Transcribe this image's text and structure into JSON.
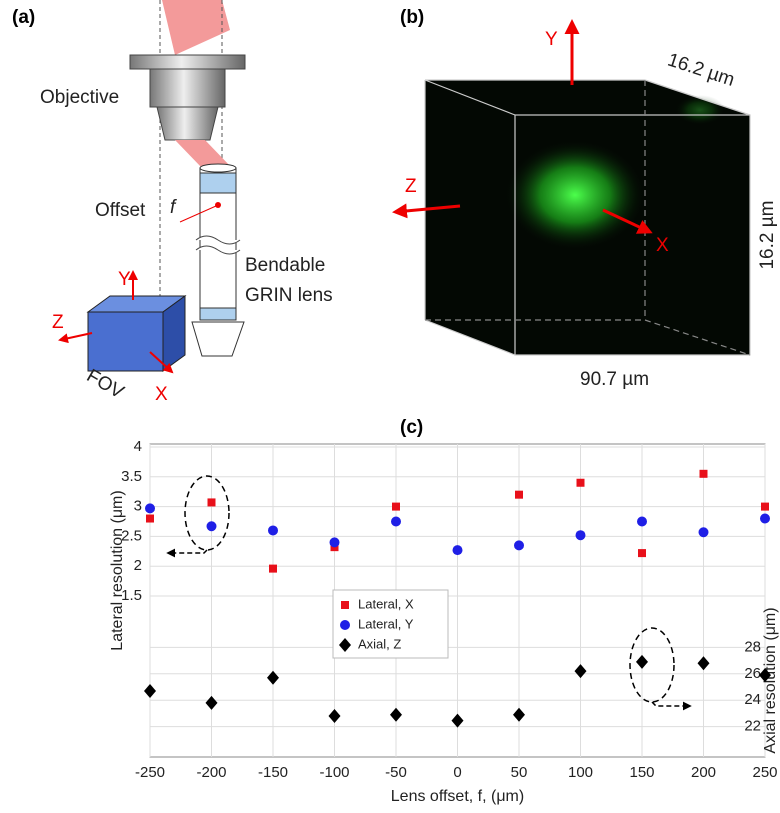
{
  "panels": {
    "a": {
      "label": "(a)",
      "objective": "Objective",
      "offset": "Offset",
      "offset_symbol": "f",
      "bendable": "Bendable",
      "grin": "GRIN lens",
      "y": "Y",
      "z": "Z",
      "x": "X",
      "fov": "FOV"
    },
    "b": {
      "label": "(b)",
      "y": "Y",
      "z": "Z",
      "x": "X",
      "depth": "16.2 µm",
      "height": "16.2 µm",
      "width": "90.7 µm"
    },
    "c": {
      "label": "(c)"
    }
  },
  "chart_data": {
    "type": "scatter",
    "xlabel": "Lens offset, f, (μm)",
    "ylabel": "Lateral resolution (μm)",
    "y2label": "Axial resolution (μm)",
    "xlim": [
      -250,
      250
    ],
    "xticks": [
      -250,
      -200,
      -150,
      -100,
      -50,
      0,
      50,
      100,
      150,
      200,
      250
    ],
    "ylim": [
      -1.2,
      4.05
    ],
    "yticks": [
      1.5,
      2,
      2.5,
      3,
      3.5,
      4
    ],
    "y2lim": [
      19.7,
      43.4
    ],
    "y2ticks": [
      22,
      24,
      26,
      28
    ],
    "grid": true,
    "series": [
      {
        "name": "Lateral, X",
        "color": "#e8101a",
        "marker": "square",
        "x": [
          -250,
          -200,
          -150,
          -100,
          -50,
          50,
          100,
          150,
          200,
          250
        ],
        "values": [
          2.8,
          3.07,
          1.96,
          2.32,
          3.0,
          3.2,
          3.4,
          2.22,
          3.55,
          3.0
        ]
      },
      {
        "name": "Lateral, Y",
        "color": "#1f1fe6",
        "marker": "circle",
        "x": [
          -250,
          -200,
          -150,
          -100,
          -50,
          0,
          50,
          100,
          150,
          200,
          250
        ],
        "values": [
          2.97,
          2.67,
          2.6,
          2.4,
          2.75,
          2.27,
          2.35,
          2.52,
          2.75,
          2.57,
          2.8
        ]
      },
      {
        "name": "Axial, Z",
        "color": "#000000",
        "marker": "diamond",
        "axis": "y2",
        "x": [
          -250,
          -200,
          -150,
          -100,
          -50,
          0,
          50,
          100,
          150,
          200,
          250
        ],
        "values": [
          24.7,
          23.8,
          25.7,
          22.8,
          22.9,
          22.45,
          22.9,
          26.2,
          26.9,
          26.8,
          25.9
        ]
      }
    ]
  }
}
